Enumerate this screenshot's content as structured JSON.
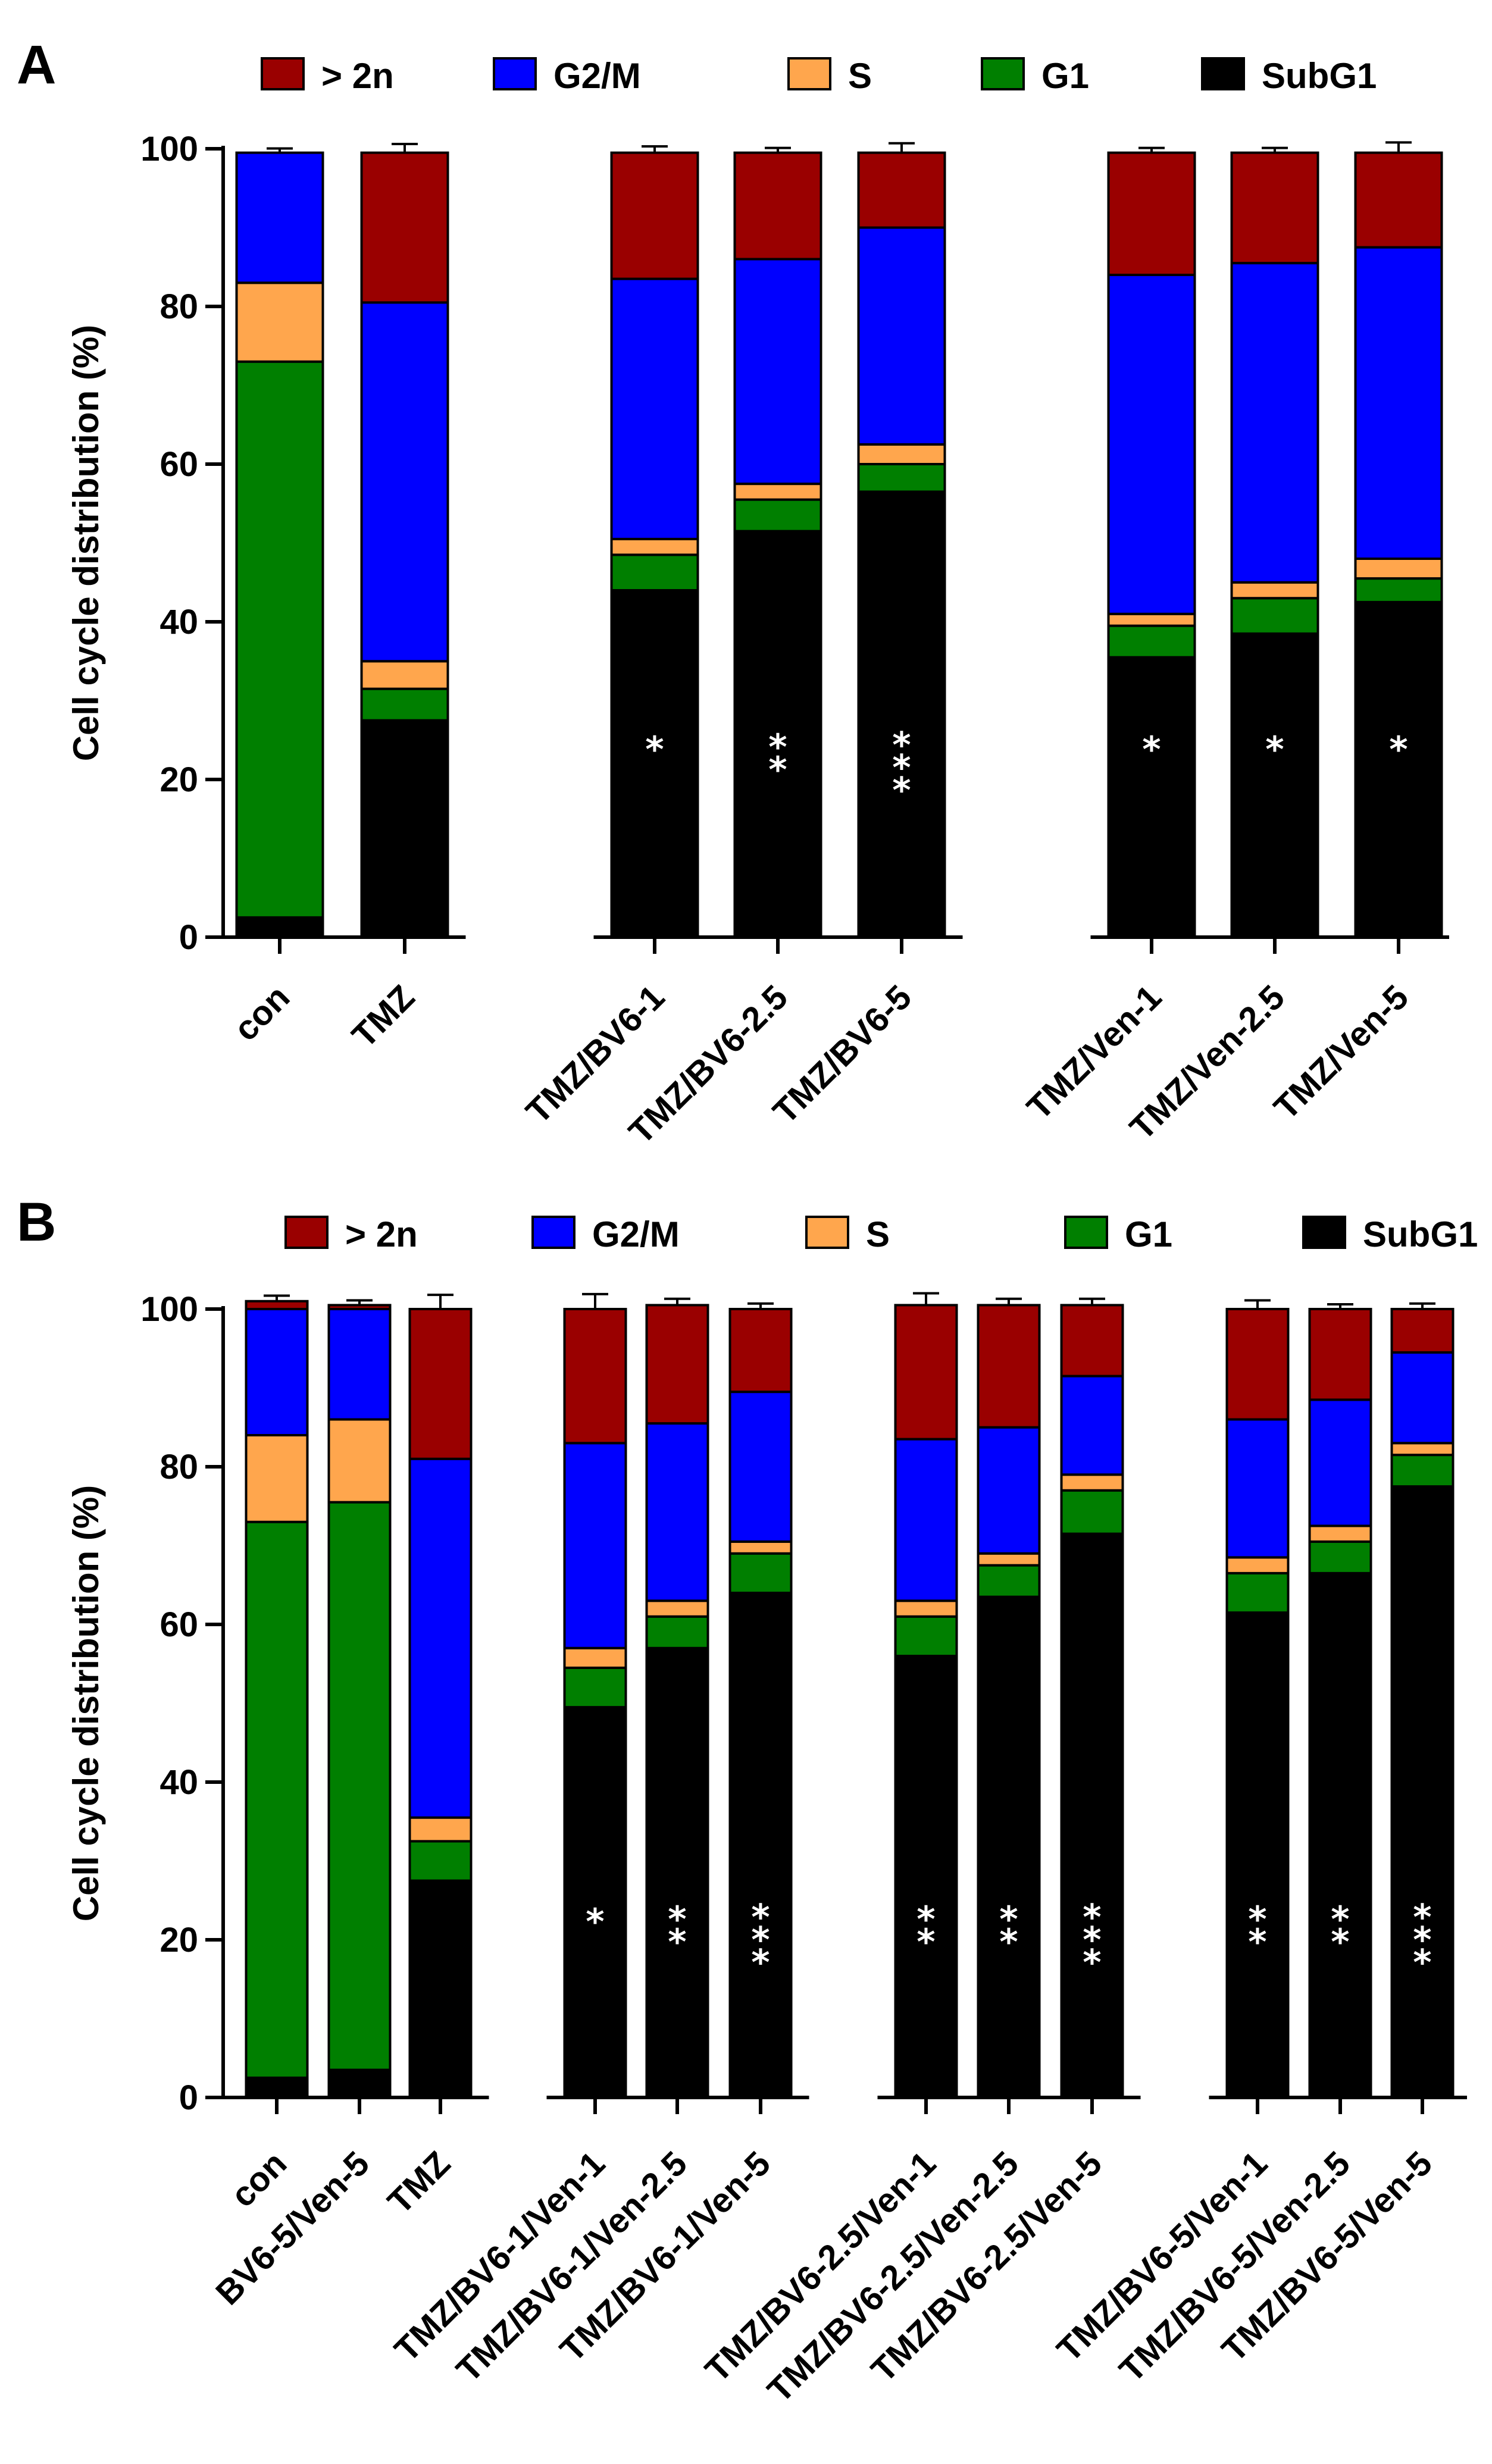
{
  "chart_data": [
    {
      "panel": "A",
      "type": "bar",
      "stacked": true,
      "ylabel": "Cell cycle distribution (%)",
      "ylim": [
        0,
        100
      ],
      "yticks": [
        "0",
        "20",
        "40",
        "60",
        "80",
        "100"
      ],
      "legend_position": "top",
      "legend": [
        {
          "name": "> 2n",
          "color": "#9a0000"
        },
        {
          "name": "G2/M",
          "color": "#0000ff"
        },
        {
          "name": "S",
          "color": "#ffa64d"
        },
        {
          "name": "G1",
          "color": "#007f00"
        },
        {
          "name": "SubG1",
          "color": "#000000"
        }
      ],
      "categories": [
        "con",
        "TMZ",
        "TMZ/BV6-1",
        "TMZ/BV6-2.5",
        "TMZ/BV6-5",
        "TMZ/Ven-1",
        "TMZ/Ven-2.5",
        "TMZ/Ven-5"
      ],
      "groups": [
        2,
        3,
        3
      ],
      "series": [
        {
          "name": "SubG1",
          "color": "#000000",
          "values": [
            2.5,
            27.5,
            44,
            51.5,
            56.5,
            35.5,
            38.5,
            42.5
          ]
        },
        {
          "name": "G1",
          "color": "#007f00",
          "values": [
            70.5,
            4,
            4.5,
            4,
            3.5,
            4,
            4.5,
            3
          ]
        },
        {
          "name": "S",
          "color": "#ffa64d",
          "values": [
            10,
            3.5,
            2,
            2,
            2.5,
            1.5,
            2,
            2.5
          ]
        },
        {
          "name": "G2/M",
          "color": "#0000ff",
          "values": [
            16.5,
            45.5,
            33,
            28.5,
            27.5,
            43,
            40.5,
            39.5
          ]
        },
        {
          "name": "> 2n",
          "color": "#9a0000",
          "values": [
            0,
            19,
            16,
            13.5,
            9.5,
            15.5,
            14,
            12
          ]
        }
      ],
      "annotations": [
        "",
        "",
        "*",
        "**",
        "***",
        "*",
        "*",
        "*"
      ]
    },
    {
      "panel": "B",
      "type": "bar",
      "stacked": true,
      "ylabel": "Cell cycle distribution (%)",
      "ylim": [
        0,
        100
      ],
      "yticks": [
        "0",
        "20",
        "40",
        "60",
        "80",
        "100"
      ],
      "legend_position": "top",
      "legend": [
        {
          "name": "> 2n",
          "color": "#9a0000"
        },
        {
          "name": "G2/M",
          "color": "#0000ff"
        },
        {
          "name": "S",
          "color": "#ffa64d"
        },
        {
          "name": "G1",
          "color": "#007f00"
        },
        {
          "name": "SubG1",
          "color": "#000000"
        }
      ],
      "categories": [
        "con",
        "BV6-5/Ven-5",
        "TMZ",
        "TMZ/BV6-1/Ven-1",
        "TMZ/BV6-1/Ven-2.5",
        "TMZ/BV6-1/Ven-5",
        "TMZ/BV6-2.5/Ven-1",
        "TMZ/BV6-2.5/Ven-2.5",
        "TMZ/BV6-2.5/Ven-5",
        "TMZ/BV6-5/Ven-1",
        "TMZ/BV6-5/Ven-2.5",
        "TMZ/BV6-5/Ven-5"
      ],
      "groups": [
        3,
        3,
        3,
        3
      ],
      "series": [
        {
          "name": "SubG1",
          "color": "#000000",
          "values": [
            2.5,
            3.5,
            27.5,
            49.5,
            57,
            64,
            56,
            63.5,
            71.5,
            61.5,
            66.5,
            77.5
          ]
        },
        {
          "name": "G1",
          "color": "#007f00",
          "values": [
            70.5,
            72,
            5,
            5,
            4,
            5,
            5,
            4,
            5.5,
            5,
            4,
            4
          ]
        },
        {
          "name": "S",
          "color": "#ffa64d",
          "values": [
            11,
            10.5,
            3,
            2.5,
            2,
            1.5,
            2,
            1.5,
            2,
            2,
            2,
            1.5
          ]
        },
        {
          "name": "G2/M",
          "color": "#0000ff",
          "values": [
            16,
            14,
            45.5,
            26,
            22.5,
            19,
            20.5,
            16,
            12.5,
            17.5,
            16,
            11.5
          ]
        },
        {
          "name": "> 2n",
          "color": "#9a0000",
          "values": [
            1,
            0.5,
            19,
            17,
            15,
            10.5,
            17,
            15.5,
            9,
            14,
            11.5,
            5.5
          ]
        }
      ],
      "annotations": [
        "",
        "",
        "",
        "*",
        "**",
        "***",
        "**",
        "**",
        "***",
        "**",
        "**",
        "***"
      ]
    }
  ]
}
